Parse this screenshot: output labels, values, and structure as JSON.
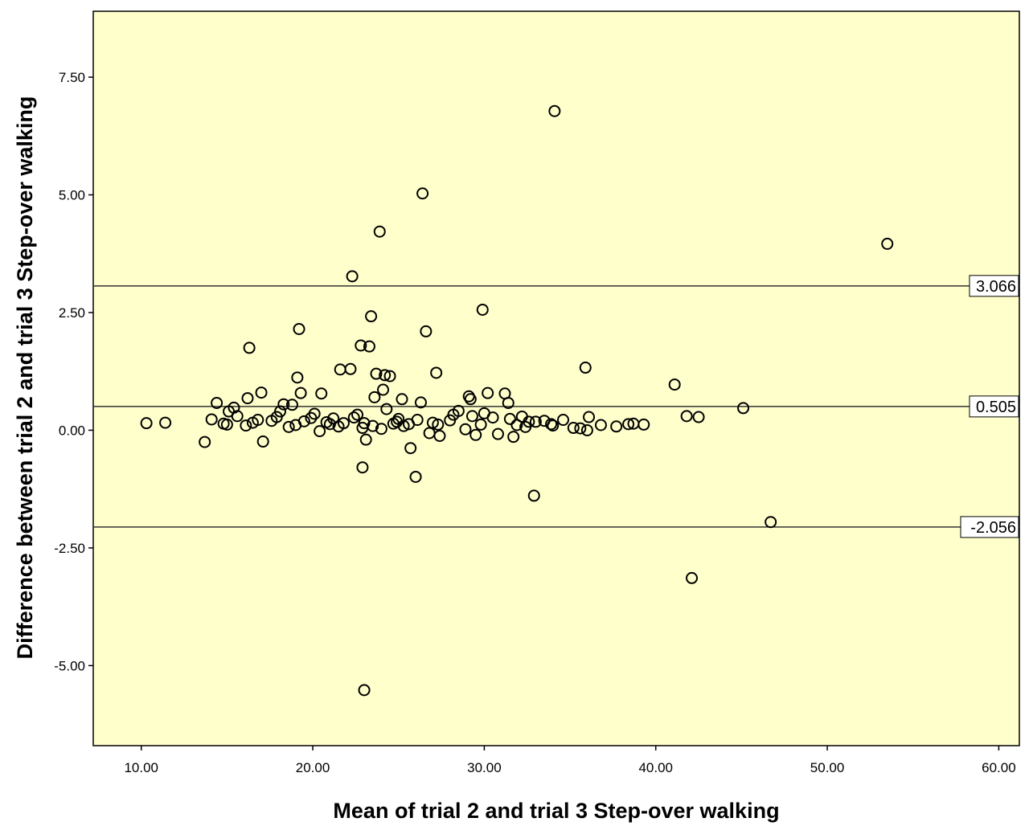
{
  "chart_data": {
    "type": "scatter",
    "title": "",
    "xlabel": "Mean of trial 2 and trial 3 Step-over walking",
    "ylabel": "Difference between trial 2 and trial 3 Step-over walking",
    "xlim": [
      7.2,
      61.2
    ],
    "ylim": [
      -6.7,
      8.9
    ],
    "x_ticks": [
      "10.00",
      "20.00",
      "30.00",
      "40.00",
      "50.00",
      "60.00"
    ],
    "y_ticks": [
      "-5.00",
      "-2.50",
      "0.00",
      "2.50",
      "5.00",
      "7.50"
    ],
    "x_tick_values": [
      10,
      20,
      30,
      40,
      50,
      60
    ],
    "y_tick_values": [
      -5,
      -2.5,
      0,
      2.5,
      5,
      7.5
    ],
    "grid": false,
    "colors": {
      "plot_background": "#ffffcc",
      "marker": "#000000",
      "line": "#333333"
    },
    "reference_lines": [
      {
        "value": 3.066,
        "label": "3.066"
      },
      {
        "value": 0.505,
        "label": "0.505"
      },
      {
        "value": -2.056,
        "label": "-2.056"
      }
    ],
    "points": [
      [
        34.1,
        6.78
      ],
      [
        26.4,
        5.03
      ],
      [
        53.5,
        3.96
      ],
      [
        23.9,
        4.22
      ],
      [
        22.3,
        3.27
      ],
      [
        29.9,
        2.56
      ],
      [
        23.4,
        2.42
      ],
      [
        19.2,
        2.15
      ],
      [
        26.6,
        2.1
      ],
      [
        22.8,
        1.8
      ],
      [
        23.3,
        1.78
      ],
      [
        16.3,
        1.75
      ],
      [
        35.9,
        1.33
      ],
      [
        22.2,
        1.3
      ],
      [
        21.6,
        1.29
      ],
      [
        27.2,
        1.22
      ],
      [
        23.7,
        1.2
      ],
      [
        24.2,
        1.17
      ],
      [
        24.5,
        1.15
      ],
      [
        19.1,
        1.12
      ],
      [
        41.1,
        0.97
      ],
      [
        24.1,
        0.86
      ],
      [
        17.0,
        0.8
      ],
      [
        19.3,
        0.79
      ],
      [
        20.5,
        0.78
      ],
      [
        30.2,
        0.79
      ],
      [
        31.2,
        0.78
      ],
      [
        29.1,
        0.72
      ],
      [
        29.2,
        0.66
      ],
      [
        23.6,
        0.7
      ],
      [
        16.2,
        0.68
      ],
      [
        25.2,
        0.66
      ],
      [
        26.3,
        0.59
      ],
      [
        31.4,
        0.58
      ],
      [
        14.4,
        0.58
      ],
      [
        18.3,
        0.55
      ],
      [
        18.8,
        0.54
      ],
      [
        15.4,
        0.48
      ],
      [
        45.1,
        0.47
      ],
      [
        24.3,
        0.45
      ],
      [
        28.5,
        0.41
      ],
      [
        15.1,
        0.4
      ],
      [
        18.1,
        0.4
      ],
      [
        20.1,
        0.35
      ],
      [
        22.6,
        0.33
      ],
      [
        36.1,
        0.28
      ],
      [
        41.8,
        0.3
      ],
      [
        42.5,
        0.28
      ],
      [
        14.1,
        0.23
      ],
      [
        16.8,
        0.22
      ],
      [
        17.6,
        0.2
      ],
      [
        19.5,
        0.19
      ],
      [
        20.8,
        0.17
      ],
      [
        21.8,
        0.15
      ],
      [
        23.0,
        0.15
      ],
      [
        24.7,
        0.14
      ],
      [
        25.6,
        0.13
      ],
      [
        27.3,
        0.12
      ],
      [
        29.8,
        0.12
      ],
      [
        31.9,
        0.11
      ],
      [
        33.0,
        0.18
      ],
      [
        34.0,
        0.1
      ],
      [
        35.2,
        0.05
      ],
      [
        36.8,
        0.11
      ],
      [
        38.4,
        0.13
      ],
      [
        39.3,
        0.12
      ],
      [
        10.3,
        0.15
      ],
      [
        11.4,
        0.16
      ],
      [
        15.0,
        0.12
      ],
      [
        16.1,
        0.1
      ],
      [
        18.6,
        0.07
      ],
      [
        20.4,
        -0.02
      ],
      [
        21.5,
        0.08
      ],
      [
        22.9,
        0.05
      ],
      [
        24.0,
        0.03
      ],
      [
        25.3,
        0.09
      ],
      [
        26.8,
        -0.06
      ],
      [
        28.9,
        0.02
      ],
      [
        30.8,
        -0.08
      ],
      [
        32.4,
        0.07
      ],
      [
        33.9,
        0.13
      ],
      [
        35.6,
        0.04
      ],
      [
        36.0,
        0.0
      ],
      [
        37.7,
        0.08
      ],
      [
        31.7,
        -0.14
      ],
      [
        29.5,
        -0.1
      ],
      [
        27.4,
        -0.12
      ],
      [
        23.1,
        -0.2
      ],
      [
        13.7,
        -0.25
      ],
      [
        17.1,
        -0.24
      ],
      [
        25.7,
        -0.38
      ],
      [
        22.9,
        -0.79
      ],
      [
        26.0,
        -0.99
      ],
      [
        32.9,
        -1.39
      ],
      [
        46.7,
        -1.95
      ],
      [
        42.1,
        -3.14
      ],
      [
        23.0,
        -5.52
      ],
      [
        15.6,
        0.3
      ],
      [
        17.9,
        0.28
      ],
      [
        19.9,
        0.26
      ],
      [
        21.2,
        0.25
      ],
      [
        22.4,
        0.27
      ],
      [
        25.0,
        0.24
      ],
      [
        26.1,
        0.22
      ],
      [
        28.0,
        0.21
      ],
      [
        30.5,
        0.27
      ],
      [
        32.2,
        0.29
      ],
      [
        34.6,
        0.22
      ],
      [
        33.5,
        0.2
      ],
      [
        38.7,
        0.14
      ],
      [
        14.8,
        0.14
      ],
      [
        16.5,
        0.16
      ],
      [
        19.0,
        0.11
      ],
      [
        21.0,
        0.13
      ],
      [
        23.5,
        0.09
      ],
      [
        24.9,
        0.18
      ],
      [
        27.0,
        0.16
      ],
      [
        28.2,
        0.33
      ],
      [
        29.3,
        0.3
      ],
      [
        30.0,
        0.36
      ],
      [
        31.5,
        0.24
      ],
      [
        32.6,
        0.18
      ]
    ]
  }
}
